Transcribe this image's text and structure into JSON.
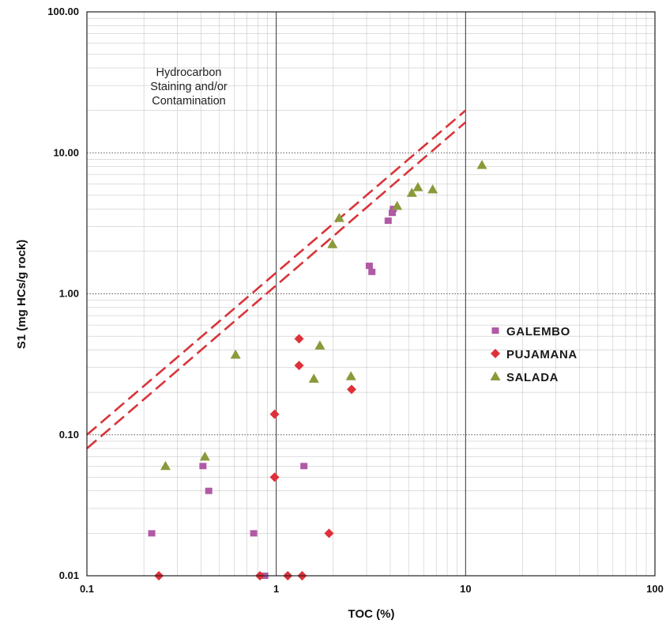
{
  "chart_data": {
    "type": "scatter",
    "title": "",
    "xlabel": "TOC (%)",
    "ylabel": "S1 (mg HCs/g rock)",
    "xscale": "log",
    "yscale": "log",
    "xlim": [
      0.1,
      100
    ],
    "ylim": [
      0.01,
      100
    ],
    "x_ticks": [
      "0.1",
      "1",
      "10",
      "100"
    ],
    "y_ticks": [
      "0.01",
      "0.10",
      "1.00",
      "10.00",
      "100.00"
    ],
    "grid": true,
    "legend_position": "right",
    "annotation": [
      "Hydrocarbon",
      "Staining and/or",
      "Contamination"
    ],
    "reference_lines": [
      {
        "style": "dashed",
        "color": "#d8343a",
        "points": [
          [
            0.1,
            0.1
          ],
          [
            10,
            20
          ]
        ]
      },
      {
        "style": "dashed",
        "color": "#d8343a",
        "points": [
          [
            0.1,
            0.08
          ],
          [
            10,
            16.5
          ]
        ]
      }
    ],
    "series": [
      {
        "name": "GALEMBO",
        "marker": "square",
        "color": "#b05aa6",
        "points": [
          [
            0.22,
            0.02
          ],
          [
            0.41,
            0.06
          ],
          [
            0.44,
            0.04
          ],
          [
            0.76,
            0.02
          ],
          [
            0.87,
            0.01
          ],
          [
            1.4,
            0.06
          ],
          [
            3.1,
            1.58
          ],
          [
            3.2,
            1.43
          ],
          [
            3.9,
            3.3
          ],
          [
            4.1,
            3.75
          ],
          [
            4.15,
            4.0
          ]
        ]
      },
      {
        "name": "PUJAMANA",
        "marker": "diamond",
        "color": "#e0303a",
        "points": [
          [
            0.24,
            0.01
          ],
          [
            0.82,
            0.01
          ],
          [
            0.98,
            0.14
          ],
          [
            0.98,
            0.05
          ],
          [
            1.15,
            0.01
          ],
          [
            1.32,
            0.48
          ],
          [
            1.32,
            0.31
          ],
          [
            1.37,
            0.01
          ],
          [
            1.9,
            0.02
          ],
          [
            2.5,
            0.21
          ]
        ]
      },
      {
        "name": "SALADA",
        "marker": "triangle",
        "color": "#8a9a3a",
        "points": [
          [
            0.26,
            0.06
          ],
          [
            0.42,
            0.07
          ],
          [
            0.61,
            0.37
          ],
          [
            1.58,
            0.25
          ],
          [
            1.7,
            0.43
          ],
          [
            1.98,
            2.25
          ],
          [
            2.15,
            3.45
          ],
          [
            2.48,
            0.26
          ],
          [
            4.35,
            4.2
          ],
          [
            5.2,
            5.2
          ],
          [
            5.6,
            5.7
          ],
          [
            6.7,
            5.5
          ],
          [
            12.2,
            8.2
          ]
        ]
      }
    ]
  }
}
